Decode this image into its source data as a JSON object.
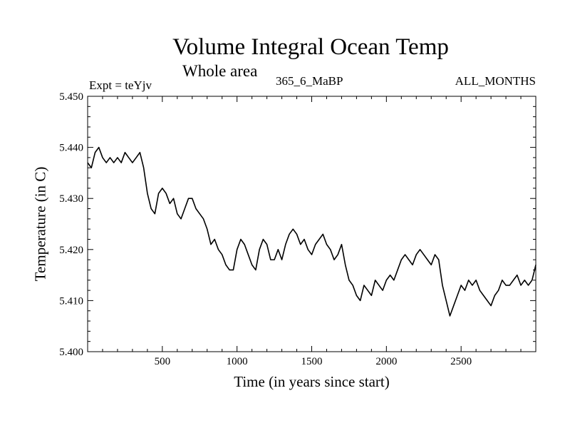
{
  "chart_data": {
    "type": "line",
    "title": "Volume Integral Ocean Temp",
    "subtitle": "Whole area",
    "label_left": "Expt = teYjv",
    "label_center": "365_6_MaBP",
    "label_right": "ALL_MONTHS",
    "xlabel": "Time (in years since start)",
    "ylabel": "Temperature (in C)",
    "xlim": [
      0,
      3000
    ],
    "ylim": [
      5.4,
      5.45
    ],
    "x_ticks": [
      500,
      1000,
      1500,
      2000,
      2500
    ],
    "x_tick_labels": [
      "500",
      "1000",
      "1500",
      "2000",
      "2500"
    ],
    "y_ticks": [
      5.4,
      5.41,
      5.42,
      5.43,
      5.44,
      5.45
    ],
    "y_tick_labels": [
      "5.400",
      "5.410",
      "5.420",
      "5.430",
      "5.440",
      "5.450"
    ],
    "grid": false,
    "line_color": "#000000",
    "series": [
      {
        "name": "Volume Integral Ocean Temp",
        "x": [
          0,
          25,
          50,
          75,
          100,
          125,
          150,
          175,
          200,
          225,
          250,
          275,
          300,
          325,
          350,
          375,
          400,
          425,
          450,
          475,
          500,
          525,
          550,
          575,
          600,
          625,
          650,
          675,
          700,
          725,
          750,
          775,
          800,
          825,
          850,
          875,
          900,
          925,
          950,
          975,
          1000,
          1025,
          1050,
          1075,
          1100,
          1125,
          1150,
          1175,
          1200,
          1225,
          1250,
          1275,
          1300,
          1325,
          1350,
          1375,
          1400,
          1425,
          1450,
          1475,
          1500,
          1525,
          1550,
          1575,
          1600,
          1625,
          1650,
          1675,
          1700,
          1725,
          1750,
          1775,
          1800,
          1825,
          1850,
          1875,
          1900,
          1925,
          1950,
          1975,
          2000,
          2025,
          2050,
          2075,
          2100,
          2125,
          2150,
          2175,
          2200,
          2225,
          2250,
          2275,
          2300,
          2325,
          2350,
          2375,
          2400,
          2425,
          2450,
          2475,
          2500,
          2525,
          2550,
          2575,
          2600,
          2625,
          2650,
          2675,
          2700,
          2725,
          2750,
          2775,
          2800,
          2825,
          2850,
          2875,
          2900,
          2925,
          2950,
          2975,
          3000
        ],
        "values": [
          5.437,
          5.436,
          5.439,
          5.44,
          5.438,
          5.437,
          5.438,
          5.437,
          5.438,
          5.437,
          5.439,
          5.438,
          5.437,
          5.438,
          5.439,
          5.436,
          5.431,
          5.428,
          5.427,
          5.431,
          5.432,
          5.431,
          5.429,
          5.43,
          5.427,
          5.426,
          5.428,
          5.43,
          5.43,
          5.428,
          5.427,
          5.426,
          5.424,
          5.421,
          5.422,
          5.42,
          5.419,
          5.417,
          5.416,
          5.416,
          5.42,
          5.422,
          5.421,
          5.419,
          5.417,
          5.416,
          5.42,
          5.422,
          5.421,
          5.418,
          5.418,
          5.42,
          5.418,
          5.421,
          5.423,
          5.424,
          5.423,
          5.421,
          5.422,
          5.42,
          5.419,
          5.421,
          5.422,
          5.423,
          5.421,
          5.42,
          5.418,
          5.419,
          5.421,
          5.417,
          5.414,
          5.413,
          5.411,
          5.41,
          5.413,
          5.412,
          5.411,
          5.414,
          5.413,
          5.412,
          5.414,
          5.415,
          5.414,
          5.416,
          5.418,
          5.419,
          5.418,
          5.417,
          5.419,
          5.42,
          5.419,
          5.418,
          5.417,
          5.419,
          5.418,
          5.413,
          5.41,
          5.407,
          5.409,
          5.411,
          5.413,
          5.412,
          5.414,
          5.413,
          5.414,
          5.412,
          5.411,
          5.41,
          5.409,
          5.411,
          5.412,
          5.414,
          5.413,
          5.413,
          5.414,
          5.415,
          5.413,
          5.414,
          5.413,
          5.414,
          5.417
        ]
      }
    ]
  }
}
